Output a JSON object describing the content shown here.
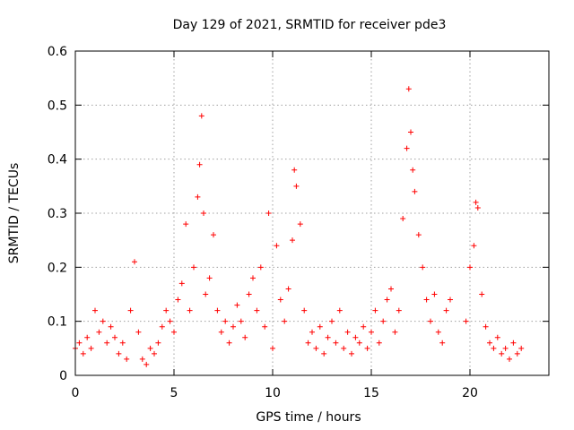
{
  "chart_data": {
    "type": "scatter",
    "title": "Day 129 of 2021, SRMTID for receiver pde3",
    "xlabel": "GPS time / hours",
    "ylabel": "SRMTID / TECUs",
    "xlim": [
      0,
      24
    ],
    "ylim": [
      0,
      0.6
    ],
    "xticks": [
      0,
      5,
      10,
      15,
      20
    ],
    "xtick_labels": [
      "0",
      "5",
      "10",
      "15",
      "20"
    ],
    "yticks": [
      0,
      0.1,
      0.2,
      0.3,
      0.4,
      0.5,
      0.6
    ],
    "ytick_labels": [
      "0",
      "0.1",
      "0.2",
      "0.3",
      "0.4",
      "0.5",
      "0.6"
    ],
    "grid": true,
    "marker": "plus",
    "series": [
      {
        "name": "SRMTID pde3",
        "color": "#ff0000",
        "x": [
          0.0,
          0.2,
          0.4,
          0.6,
          0.8,
          1.0,
          1.2,
          1.4,
          1.6,
          1.8,
          2.0,
          2.2,
          2.4,
          2.6,
          2.8,
          3.0,
          3.2,
          3.4,
          3.6,
          3.8,
          4.0,
          4.2,
          4.4,
          4.6,
          4.8,
          5.0,
          5.2,
          5.4,
          5.6,
          5.8,
          6.0,
          6.2,
          6.3,
          6.4,
          6.5,
          6.6,
          6.8,
          7.0,
          7.2,
          7.4,
          7.6,
          7.8,
          8.0,
          8.2,
          8.4,
          8.6,
          8.8,
          9.0,
          9.2,
          9.4,
          9.6,
          9.8,
          10.0,
          10.2,
          10.4,
          10.6,
          10.8,
          11.0,
          11.1,
          11.2,
          11.4,
          11.6,
          11.8,
          12.0,
          12.2,
          12.4,
          12.6,
          12.8,
          13.0,
          13.2,
          13.4,
          13.6,
          13.8,
          14.0,
          14.2,
          14.4,
          14.6,
          14.8,
          15.0,
          15.2,
          15.4,
          15.6,
          15.8,
          16.0,
          16.2,
          16.4,
          16.6,
          16.8,
          16.9,
          17.0,
          17.1,
          17.2,
          17.4,
          17.6,
          17.8,
          18.0,
          18.2,
          18.4,
          18.6,
          18.8,
          19.0,
          19.8,
          20.0,
          20.2,
          20.3,
          20.4,
          20.6,
          20.8,
          21.0,
          21.2,
          21.4,
          21.6,
          21.8,
          22.0,
          22.2,
          22.4,
          22.6
        ],
        "y": [
          0.05,
          0.06,
          0.04,
          0.07,
          0.05,
          0.12,
          0.08,
          0.1,
          0.06,
          0.09,
          0.07,
          0.04,
          0.06,
          0.03,
          0.12,
          0.21,
          0.08,
          0.03,
          0.02,
          0.05,
          0.04,
          0.06,
          0.09,
          0.12,
          0.1,
          0.08,
          0.14,
          0.17,
          0.28,
          0.12,
          0.2,
          0.33,
          0.39,
          0.48,
          0.3,
          0.15,
          0.18,
          0.26,
          0.12,
          0.08,
          0.1,
          0.06,
          0.09,
          0.13,
          0.1,
          0.07,
          0.15,
          0.18,
          0.12,
          0.2,
          0.09,
          0.3,
          0.05,
          0.24,
          0.14,
          0.1,
          0.16,
          0.25,
          0.38,
          0.35,
          0.28,
          0.12,
          0.06,
          0.08,
          0.05,
          0.09,
          0.04,
          0.07,
          0.1,
          0.06,
          0.12,
          0.05,
          0.08,
          0.04,
          0.07,
          0.06,
          0.09,
          0.05,
          0.08,
          0.12,
          0.06,
          0.1,
          0.14,
          0.16,
          0.08,
          0.12,
          0.29,
          0.42,
          0.53,
          0.45,
          0.38,
          0.34,
          0.26,
          0.2,
          0.14,
          0.1,
          0.15,
          0.08,
          0.06,
          0.12,
          0.14,
          0.1,
          0.2,
          0.24,
          0.32,
          0.31,
          0.15,
          0.09,
          0.06,
          0.05,
          0.07,
          0.04,
          0.05,
          0.03,
          0.06,
          0.04,
          0.05
        ]
      }
    ]
  }
}
